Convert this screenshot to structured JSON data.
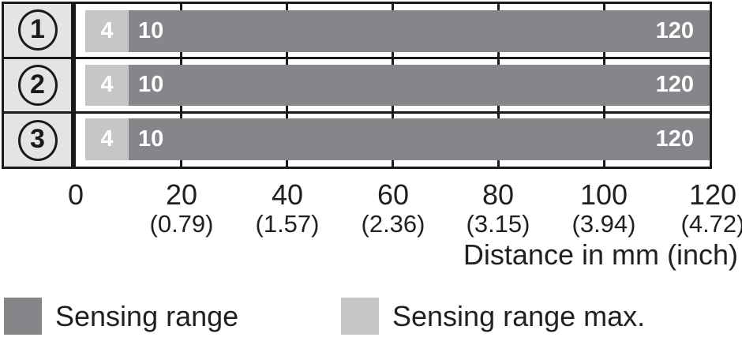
{
  "chart_data": {
    "type": "bar",
    "orientation": "horizontal",
    "title": "",
    "xlabel": "Distance in mm (inch)",
    "xlim_mm": [
      0,
      120
    ],
    "grid": "vertical ticks every 20 mm",
    "rows": [
      {
        "ref": "1",
        "sensing_range_max_start_mm": 4,
        "sensing_range_start_mm": 10,
        "sensing_range_end_mm": 120,
        "labels": {
          "max": "4",
          "min": "10",
          "end": "120"
        }
      },
      {
        "ref": "2",
        "sensing_range_max_start_mm": 4,
        "sensing_range_start_mm": 10,
        "sensing_range_end_mm": 120,
        "labels": {
          "max": "4",
          "min": "10",
          "end": "120"
        }
      },
      {
        "ref": "3",
        "sensing_range_max_start_mm": 4,
        "sensing_range_start_mm": 10,
        "sensing_range_end_mm": 120,
        "labels": {
          "max": "4",
          "min": "10",
          "end": "120"
        }
      }
    ],
    "x_ticks": [
      {
        "mm": "0",
        "inch": ""
      },
      {
        "mm": "20",
        "inch": "(0.79)"
      },
      {
        "mm": "40",
        "inch": "(1.57)"
      },
      {
        "mm": "60",
        "inch": "(2.36)"
      },
      {
        "mm": "80",
        "inch": "(3.15)"
      },
      {
        "mm": "100",
        "inch": "(3.94)"
      },
      {
        "mm": "120",
        "inch": "(4.72)"
      }
    ],
    "axis_title": "Distance in mm (inch)",
    "legend": [
      {
        "label": "Sensing range",
        "color": "#85868a"
      },
      {
        "label": "Sensing range max.",
        "color": "#c5c6c8"
      }
    ],
    "legend_position": "bottom"
  },
  "colors": {
    "bar_dark": "#85868a",
    "bar_light": "#c5c6c8",
    "cell_bg": "#e3e4e5",
    "line": "#1a1a1a",
    "text": "#221f1f",
    "bar_text": "#ffffff"
  }
}
